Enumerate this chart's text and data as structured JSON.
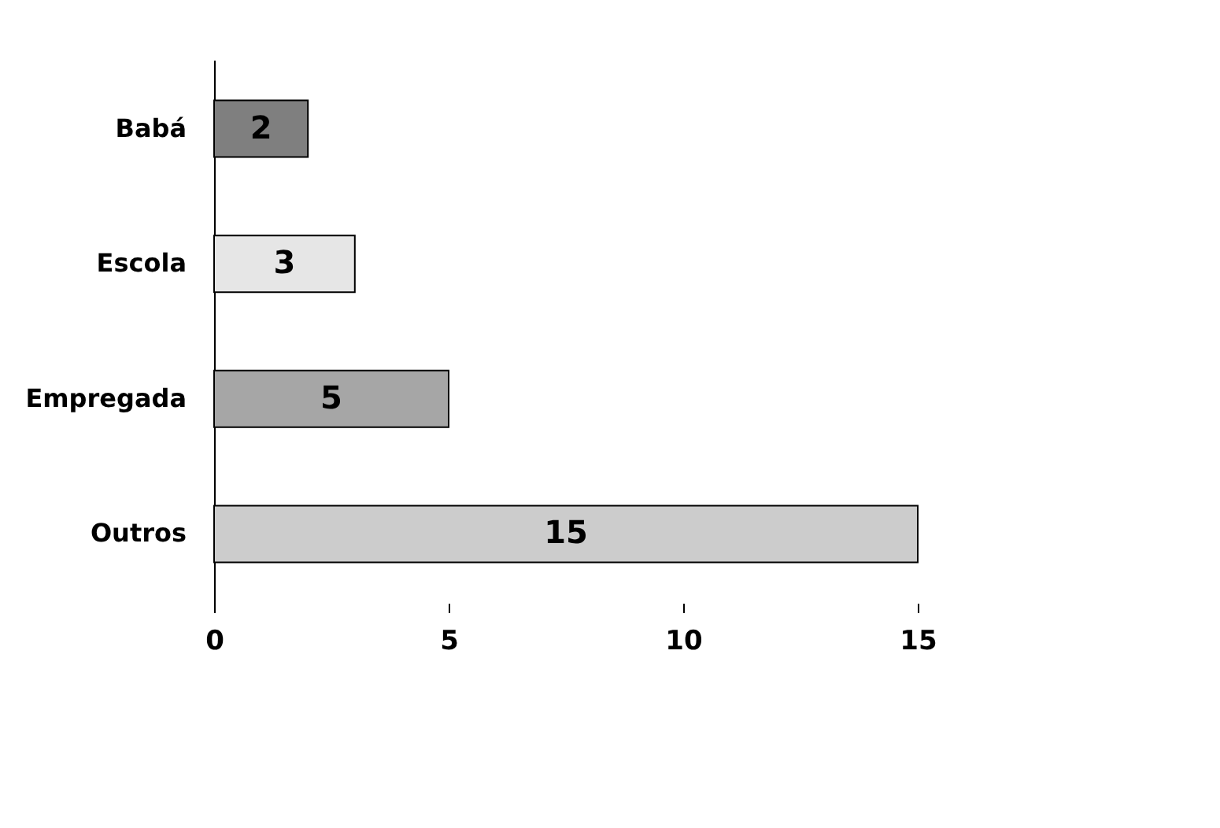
{
  "chart_data": {
    "type": "bar",
    "orientation": "horizontal",
    "categories": [
      "Babá",
      "Escola",
      "Empregada",
      "Outros"
    ],
    "values": [
      2,
      3,
      5,
      15
    ],
    "colors": [
      "#7f7f7f",
      "#e6e6e6",
      "#a6a6a6",
      "#cccccc"
    ],
    "xlim": [
      0,
      15
    ],
    "xticks": [
      0,
      5,
      10,
      15
    ],
    "grid": false,
    "legend": false,
    "data_labels": true
  }
}
